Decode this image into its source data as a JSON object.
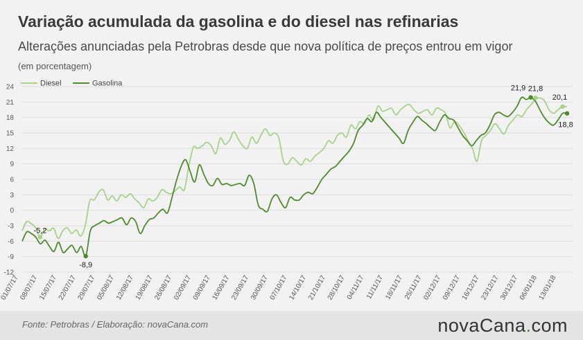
{
  "header": {
    "title": "Variação acumulada da gasolina e do diesel nas refinarias",
    "subtitle": "Alterações anunciadas pela Petrobras desde que nova política de preços entrou em vigor",
    "unit": "(em porcentagem)"
  },
  "footer": {
    "source": "Fonte:  Petrobras  / Elaboração:  novaCana.com",
    "logo_main": "novaCana",
    "logo_dot": ".",
    "logo_tld": "com"
  },
  "colors": {
    "diesel": "#a6d28a",
    "gasolina": "#4c8b2b",
    "grid": "#dcdcdc"
  },
  "chart_data": {
    "type": "line",
    "title": "Variação acumulada da gasolina e do diesel nas refinarias",
    "ylabel": "(em porcentagem)",
    "ylim": [
      -12,
      24
    ],
    "yticks": [
      -12,
      -9,
      -6,
      -3,
      0,
      3,
      6,
      9,
      12,
      15,
      18,
      21,
      24
    ],
    "grid": true,
    "legend": "top-left",
    "x_tick_labels": [
      "01/07/17",
      "08/07/17",
      "15/07/17",
      "22/07/17",
      "29/07/17",
      "05/08/17",
      "12/08/17",
      "19/08/17",
      "26/08/17",
      "02/09/17",
      "09/09/17",
      "16/09/17",
      "23/09/17",
      "30/09/17",
      "07/10/17",
      "14/10/17",
      "21/10/17",
      "28/10/17",
      "04/11/17",
      "11/11/17",
      "18/11/17",
      "25/11/17",
      "02/12/17",
      "09/12/17",
      "16/12/17",
      "23/12/17",
      "30/12/17",
      "06/01/18",
      "13/01/18"
    ],
    "series": [
      {
        "name": "Diesel",
        "values": [
          -4,
          -2.2,
          -2.6,
          -3.4,
          -5.2,
          -3.6,
          -4,
          -3.5,
          -5.5,
          -4,
          -3.4,
          -4.5,
          -3.8,
          -5,
          -3,
          1.8,
          2,
          3.5,
          4,
          2,
          2.8,
          1.8,
          3,
          2.5,
          3.2,
          2.2,
          1.4,
          0.5,
          2.2,
          1.8,
          2.5,
          4,
          3.5,
          3.2,
          3.8,
          4.5,
          4,
          8.5,
          12.2,
          12,
          12.5,
          13.2,
          12.5,
          11,
          14,
          12.8,
          13.5,
          15.2,
          13.8,
          12.5,
          12,
          14.2,
          13,
          14.5,
          15.8,
          14.5,
          15,
          14,
          9.5,
          9,
          10.2,
          9.5,
          8.8,
          10,
          9.5,
          10.5,
          11.2,
          12,
          13.5,
          13,
          14.5,
          15,
          14.2,
          16.5,
          15.8,
          17.2,
          16.8,
          18.5,
          17.5,
          20.2,
          19.2,
          19.5,
          19.8,
          18.5,
          19.5,
          20.2,
          20.5,
          19.5,
          18.8,
          19.2,
          19.5,
          18.5,
          19.8,
          19.5,
          18.8,
          16,
          17.2,
          16.5,
          15.2,
          13.5,
          12,
          9.5,
          13.5,
          14.5,
          15.5,
          16.8,
          15.8,
          14.8,
          16.5,
          17.5,
          18.5,
          18.2,
          19.5,
          20.5,
          21.5,
          21.8,
          21.2,
          19.5,
          18.8,
          19.5,
          20.1,
          20.1
        ],
        "annotations": [
          {
            "label": "-5,2",
            "value": -5.2
          },
          {
            "label": "21,8",
            "value": 21.8
          },
          {
            "label": "20,1",
            "value": 20.1
          }
        ]
      },
      {
        "name": "Gasolina",
        "values": [
          -6,
          -4.2,
          -4.5,
          -5.2,
          -6.5,
          -5.8,
          -7,
          -8,
          -6.2,
          -8.2,
          -7.5,
          -6.8,
          -8.2,
          -7,
          -8.9,
          -4,
          -3,
          -2.5,
          -2,
          -2.5,
          -2.2,
          -1.8,
          -1.5,
          -2.8,
          -1.5,
          -2.2,
          -4.5,
          -3,
          -1.8,
          -1.5,
          -0.5,
          0.2,
          -0.5,
          2.5,
          5.8,
          8.5,
          9.8,
          7.5,
          5.5,
          8.8,
          7,
          5.2,
          4.8,
          6.2,
          5,
          5.2,
          4.8,
          5,
          5.2,
          4.8,
          6.8,
          5.2,
          1,
          0.2,
          -0.2,
          2.2,
          3,
          1.5,
          0.5,
          2.5,
          2,
          2,
          3,
          3.5,
          3.2,
          4.5,
          6,
          7,
          8,
          8.5,
          9.5,
          10.5,
          11.5,
          13,
          15.5,
          16.5,
          17.8,
          17.2,
          19,
          18,
          17,
          16,
          15,
          14,
          13,
          15.5,
          17,
          18.2,
          17.5,
          16.8,
          16,
          15.5,
          17.2,
          18.5,
          17.8,
          17.5,
          16,
          14.5,
          13.5,
          12.5,
          13.5,
          14.5,
          15,
          16.5,
          18.5,
          19,
          18.5,
          18.2,
          19,
          20.2,
          21.9,
          21.5,
          21.8,
          21.2,
          19.5,
          18,
          17,
          16.5,
          17.5,
          18.8,
          18.8
        ],
        "annotations": [
          {
            "label": "-8,9",
            "value": -8.9
          },
          {
            "label": "21,9",
            "value": 21.9
          },
          {
            "label": "18,8",
            "value": 18.8
          }
        ]
      }
    ]
  }
}
